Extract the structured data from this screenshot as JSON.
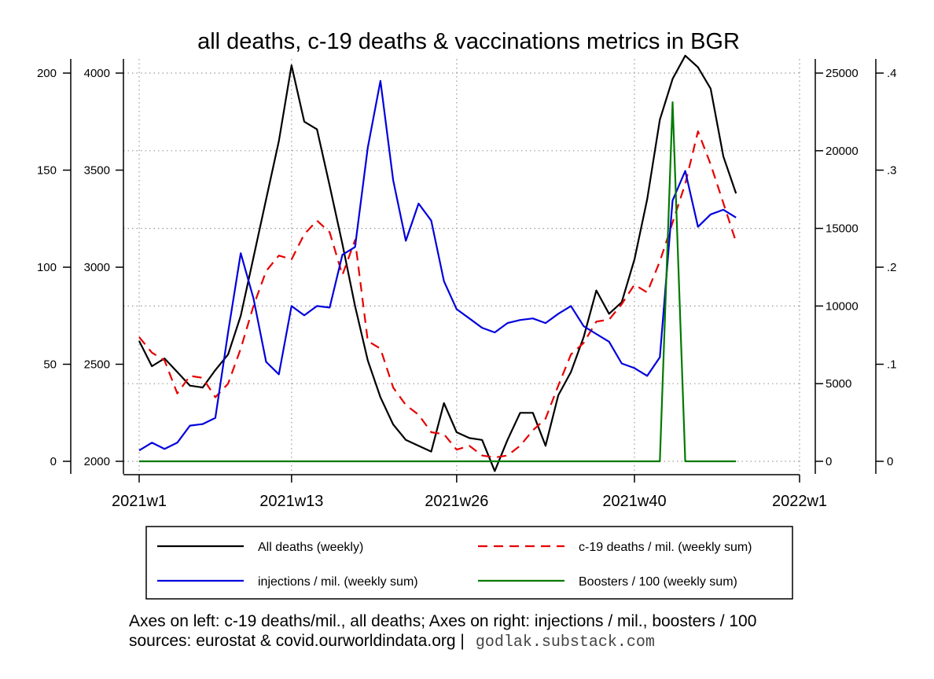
{
  "chart_data": {
    "type": "line",
    "title": "all deaths, c-19 deaths & vaccinations metrics in BGR",
    "x": [
      1,
      2,
      3,
      4,
      5,
      6,
      7,
      8,
      9,
      10,
      11,
      12,
      13,
      14,
      15,
      16,
      17,
      18,
      19,
      20,
      21,
      22,
      23,
      24,
      25,
      26,
      27,
      28,
      29,
      30,
      31,
      32,
      33,
      34,
      35,
      36,
      37,
      38,
      39,
      40,
      41,
      42,
      43,
      44,
      45,
      46,
      47,
      48
    ],
    "x_ticks": [
      {
        "week": 1,
        "label": "2021w1"
      },
      {
        "week": 13,
        "label": "2021w13"
      },
      {
        "week": 26,
        "label": "2021w26"
      },
      {
        "week": 40,
        "label": "2021w40"
      },
      {
        "week": 53,
        "label": "2022w1"
      }
    ],
    "axes": {
      "left_outer": {
        "ticks": [
          "0",
          "50",
          "100",
          "150",
          "200"
        ],
        "range": [
          0,
          200
        ],
        "label": ""
      },
      "left_inner": {
        "ticks": [
          "2000",
          "2500",
          "3000",
          "3500",
          "4000"
        ],
        "range": [
          2000,
          4000
        ],
        "label": ""
      },
      "right_inner": {
        "ticks": [
          "0",
          "5000",
          "10000",
          "15000",
          "20000",
          "25000"
        ],
        "range": [
          0,
          25000
        ],
        "label": ""
      },
      "right_outer": {
        "ticks": [
          "0",
          ".1",
          ".2",
          ".3",
          ".4"
        ],
        "range": [
          0,
          0.4
        ],
        "label": ""
      }
    },
    "grid": true,
    "legend_placement": "bottom",
    "series": [
      {
        "name": "All deaths (weekly)",
        "axis": "left_inner",
        "color": "#000000",
        "dash": "solid",
        "values": [
          2620,
          2490,
          2530,
          2460,
          2390,
          2380,
          2470,
          2550,
          2750,
          3050,
          3350,
          3650,
          4040,
          3750,
          3710,
          3420,
          3120,
          2800,
          2520,
          2330,
          2190,
          2110,
          2080,
          2050,
          2300,
          2150,
          2120,
          2110,
          1950,
          2110,
          2250,
          2250,
          2080,
          2340,
          2460,
          2640,
          2880,
          2760,
          2820,
          3040,
          3350,
          3760,
          3970,
          4090,
          4030,
          3920,
          3570,
          3380
        ]
      },
      {
        "name": "c-19 deaths / mil. (weekly sum)",
        "axis": "left_outer",
        "color": "#e60000",
        "dash": "dashed",
        "values": [
          64,
          56,
          52,
          35,
          44,
          43,
          33,
          40,
          58,
          80,
          98,
          106,
          104,
          117,
          124,
          118,
          96,
          114,
          62,
          58,
          38,
          29,
          24,
          15,
          14,
          6,
          8,
          3,
          2,
          3,
          8,
          16,
          22,
          39,
          55,
          61,
          72,
          73,
          81,
          91,
          87,
          103,
          123,
          143,
          170,
          153,
          133,
          113
        ]
      },
      {
        "name": "injections / mil. (weekly sum)",
        "axis": "right_inner",
        "color": "#0000dd",
        "dash": "solid",
        "values": [
          700,
          1200,
          800,
          1200,
          2300,
          2400,
          2800,
          8300,
          13400,
          10500,
          6400,
          5600,
          10000,
          9400,
          10000,
          9900,
          13300,
          13800,
          20200,
          24500,
          18100,
          14200,
          16600,
          15500,
          11600,
          9800,
          9200,
          8600,
          8300,
          8900,
          9100,
          9200,
          8900,
          9500,
          10000,
          8700,
          8200,
          7700,
          6300,
          6000,
          5500,
          6700,
          16800,
          18700,
          15100,
          15900,
          16200,
          15700
        ]
      },
      {
        "name": "Boosters / 100 (weekly sum)",
        "axis": "right_outer",
        "color": "#007a00",
        "dash": "solid",
        "values": [
          0,
          0,
          0,
          0,
          0,
          0,
          0,
          0,
          0,
          0,
          0,
          0,
          0,
          0,
          0,
          0,
          0,
          0,
          0,
          0,
          0,
          0,
          0,
          0,
          0,
          0,
          0,
          0,
          0,
          0,
          0,
          0,
          0,
          0,
          0,
          0,
          0,
          0,
          0,
          0,
          0,
          0,
          0.37,
          0,
          0,
          0,
          0,
          0
        ]
      }
    ]
  },
  "notes": {
    "line1": "Axes on left: c-19 deaths/mil., all deaths; Axes on right: injections / mil., boosters / 100",
    "line2": "sources: eurostat & covid.ourworldindata.org |",
    "site": "godlak.substack.com"
  }
}
